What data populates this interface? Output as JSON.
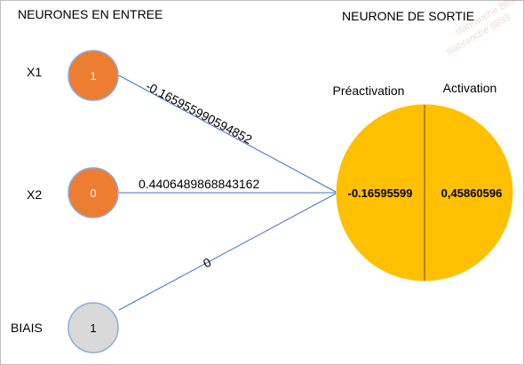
{
  "headers": {
    "inputs": "NEURONES EN ENTREE",
    "output": "NEURONE DE SORTIE"
  },
  "inputs": [
    {
      "label": "X1",
      "value": "1",
      "color": "#ED7D31"
    },
    {
      "label": "X2",
      "value": "0",
      "color": "#ED7D31"
    },
    {
      "label": "BIAIS",
      "value": "1",
      "color": "#D9D9D9"
    }
  ],
  "weights": [
    "-0.165955990594852",
    "0.4406489868843162",
    "0"
  ],
  "output": {
    "preactivation_label": "Préactivation",
    "activation_label": "Activation",
    "preactivation_value": "-0.16595599",
    "activation_value": "0,45860596",
    "color": "#FFC000"
  },
  "colors": {
    "connection": "#4472C4",
    "divider": "#7F6000"
  },
  "watermark": "slabranche 8893"
}
